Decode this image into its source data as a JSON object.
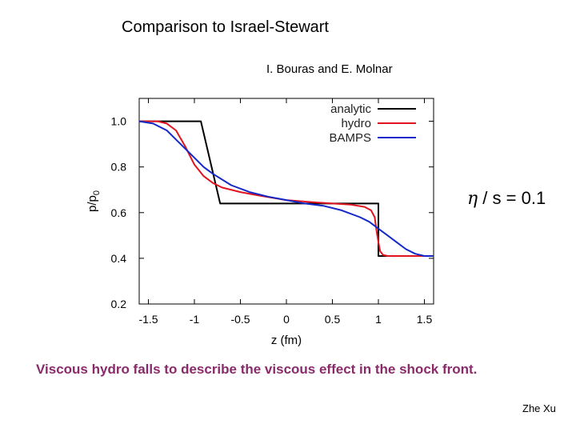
{
  "slide": {
    "title": "Comparison to Israel-Stewart",
    "authors": "I. Bouras and E. Molnar",
    "annotation": {
      "eta": "η",
      "rest": " / s = 0.1"
    },
    "caption": "Viscous hydro falls to describe the viscous effect in the shock front.",
    "footer": "Zhe Xu"
  },
  "chart_data": {
    "type": "line",
    "title": "",
    "xlabel": "z (fm)",
    "ylabel": "p/p",
    "ylabel_sub": "0",
    "xlim": [
      -1.6,
      1.6
    ],
    "ylim": [
      0.2,
      1.1
    ],
    "xticks": [
      -1.5,
      -1,
      -0.5,
      0,
      0.5,
      1,
      1.5
    ],
    "xtick_labels": [
      "-1.5",
      "-1",
      "-0.5",
      "0",
      "0.5",
      "1",
      "1.5"
    ],
    "yticks": [
      0.2,
      0.4,
      0.6,
      0.8,
      1.0
    ],
    "ytick_labels": [
      "0.2",
      "0.4",
      "0.6",
      "0.8",
      "1.0"
    ],
    "grid": false,
    "legend_position": "top-right",
    "series": [
      {
        "name": "analytic",
        "color": "#000000",
        "x": [
          -1.6,
          -0.93,
          -0.72,
          1.0,
          1.0,
          1.6
        ],
        "y": [
          1.0,
          1.0,
          0.64,
          0.64,
          0.41,
          0.41
        ]
      },
      {
        "name": "hydro",
        "color": "#e0141e",
        "x": [
          -1.6,
          -1.4,
          -1.3,
          -1.2,
          -1.1,
          -1.0,
          -0.9,
          -0.8,
          -0.7,
          -0.5,
          -0.3,
          0.0,
          0.3,
          0.5,
          0.7,
          0.85,
          0.92,
          0.96,
          0.98,
          1.0,
          1.02,
          1.05,
          1.1,
          1.2,
          1.4,
          1.6
        ],
        "y": [
          1.0,
          1.0,
          0.99,
          0.96,
          0.89,
          0.81,
          0.76,
          0.73,
          0.71,
          0.69,
          0.675,
          0.655,
          0.645,
          0.64,
          0.635,
          0.625,
          0.61,
          0.58,
          0.52,
          0.47,
          0.43,
          0.415,
          0.41,
          0.41,
          0.41,
          0.41
        ]
      },
      {
        "name": "BAMPS",
        "color": "#1428c8",
        "x": [
          -1.6,
          -1.45,
          -1.3,
          -1.2,
          -1.1,
          -1.0,
          -0.9,
          -0.8,
          -0.6,
          -0.4,
          -0.2,
          0.0,
          0.2,
          0.4,
          0.6,
          0.8,
          0.9,
          1.0,
          1.1,
          1.2,
          1.3,
          1.4,
          1.5,
          1.6
        ],
        "y": [
          1.0,
          0.99,
          0.96,
          0.92,
          0.88,
          0.84,
          0.8,
          0.77,
          0.72,
          0.69,
          0.67,
          0.655,
          0.64,
          0.63,
          0.61,
          0.58,
          0.56,
          0.53,
          0.5,
          0.47,
          0.44,
          0.42,
          0.41,
          0.41
        ]
      }
    ]
  }
}
